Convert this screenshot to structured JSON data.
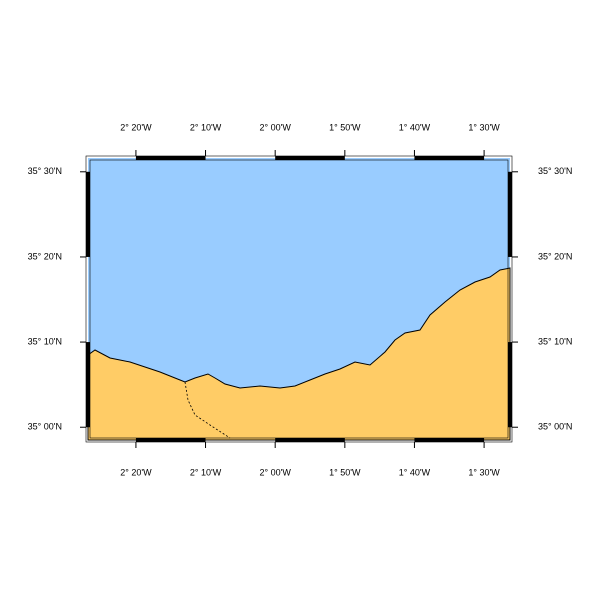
{
  "map": {
    "lon_range": [
      -2.448,
      -1.438
    ],
    "lat_range": [
      34.975,
      35.527
    ],
    "lon_ticks": [
      {
        "value": -2.3333,
        "label": "2° 20'W"
      },
      {
        "value": -2.1667,
        "label": "2° 10'W"
      },
      {
        "value": -2.0,
        "label": "2° 00'W"
      },
      {
        "value": -1.8333,
        "label": "1° 50'W"
      },
      {
        "value": -1.6667,
        "label": "1° 40'W"
      },
      {
        "value": -1.5,
        "label": "1° 30'W"
      }
    ],
    "lat_ticks": [
      {
        "value": 35.5,
        "label": "35° 30'N"
      },
      {
        "value": 35.3333,
        "label": "35° 20'N"
      },
      {
        "value": 35.1667,
        "label": "35° 10'N"
      },
      {
        "value": 35.0,
        "label": "35° 00'N"
      }
    ]
  }
}
